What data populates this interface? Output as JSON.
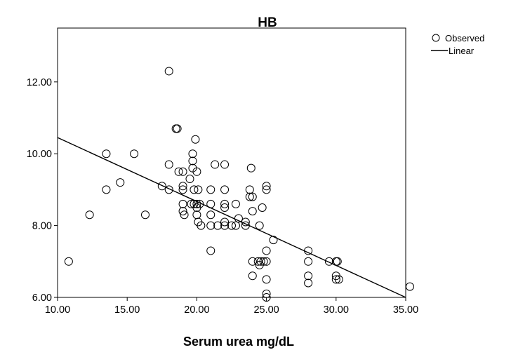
{
  "chart_data": {
    "type": "scatter",
    "title": "HB",
    "xlabel": "Serum urea mg/dL",
    "ylabel": "",
    "xlim": [
      10.0,
      35.0
    ],
    "ylim": [
      6.0,
      13.5
    ],
    "xticks": [
      "10.00",
      "15.00",
      "20.00",
      "25.00",
      "30.00",
      "35.00"
    ],
    "yticks": [
      "6.00",
      "8.00",
      "10.00",
      "12.00"
    ],
    "ytick_values": [
      6,
      8,
      10,
      12
    ],
    "xtick_values": [
      10,
      15,
      20,
      25,
      30,
      35
    ],
    "grid": false,
    "legend_position": "top-right, outside plot",
    "legend": [
      {
        "label": "Observed",
        "marker": "circle"
      },
      {
        "label": "Linear",
        "marker": "line"
      }
    ],
    "series": [
      {
        "name": "Observed",
        "style": "open-circle",
        "points": [
          [
            10.8,
            7.0
          ],
          [
            12.3,
            8.3
          ],
          [
            13.5,
            10.0
          ],
          [
            13.5,
            9.0
          ],
          [
            14.5,
            9.2
          ],
          [
            15.5,
            10.0
          ],
          [
            16.3,
            8.3
          ],
          [
            17.5,
            9.1
          ],
          [
            18.0,
            12.3
          ],
          [
            18.0,
            9.7
          ],
          [
            18.0,
            9.0
          ],
          [
            18.5,
            10.7
          ],
          [
            18.6,
            10.7
          ],
          [
            18.7,
            9.5
          ],
          [
            19.0,
            9.5
          ],
          [
            19.0,
            9.1
          ],
          [
            19.0,
            9.0
          ],
          [
            19.0,
            8.6
          ],
          [
            19.0,
            8.4
          ],
          [
            19.1,
            8.3
          ],
          [
            19.5,
            9.3
          ],
          [
            19.6,
            8.6
          ],
          [
            19.7,
            10.0
          ],
          [
            19.7,
            9.8
          ],
          [
            19.7,
            9.6
          ],
          [
            19.8,
            9.0
          ],
          [
            19.8,
            8.6
          ],
          [
            19.9,
            10.4
          ],
          [
            20.0,
            9.5
          ],
          [
            20.0,
            8.6
          ],
          [
            20.0,
            8.5
          ],
          [
            20.0,
            8.3
          ],
          [
            20.1,
            9.0
          ],
          [
            20.1,
            8.1
          ],
          [
            20.2,
            8.6
          ],
          [
            20.3,
            8.0
          ],
          [
            21.0,
            9.0
          ],
          [
            21.0,
            8.6
          ],
          [
            21.0,
            8.3
          ],
          [
            21.0,
            8.0
          ],
          [
            21.0,
            7.3
          ],
          [
            21.3,
            9.7
          ],
          [
            21.5,
            8.0
          ],
          [
            22.0,
            9.7
          ],
          [
            22.0,
            9.0
          ],
          [
            22.0,
            8.6
          ],
          [
            22.0,
            8.5
          ],
          [
            22.0,
            8.1
          ],
          [
            22.0,
            8.0
          ],
          [
            22.5,
            8.0
          ],
          [
            22.8,
            8.6
          ],
          [
            22.8,
            8.0
          ],
          [
            23.0,
            8.2
          ],
          [
            23.5,
            8.1
          ],
          [
            23.5,
            8.0
          ],
          [
            23.8,
            9.0
          ],
          [
            23.8,
            8.8
          ],
          [
            23.9,
            9.6
          ],
          [
            24.0,
            8.8
          ],
          [
            24.0,
            8.4
          ],
          [
            24.0,
            7.0
          ],
          [
            24.0,
            6.6
          ],
          [
            24.4,
            7.0
          ],
          [
            24.5,
            8.0
          ],
          [
            24.5,
            6.9
          ],
          [
            24.6,
            7.0
          ],
          [
            24.7,
            8.5
          ],
          [
            24.8,
            7.0
          ],
          [
            25.0,
            9.1
          ],
          [
            25.0,
            9.0
          ],
          [
            25.0,
            7.3
          ],
          [
            25.0,
            7.0
          ],
          [
            25.0,
            6.5
          ],
          [
            25.0,
            6.1
          ],
          [
            25.0,
            6.0
          ],
          [
            25.5,
            7.6
          ],
          [
            28.0,
            7.3
          ],
          [
            28.0,
            7.0
          ],
          [
            28.0,
            6.6
          ],
          [
            28.0,
            6.4
          ],
          [
            29.5,
            7.0
          ],
          [
            30.0,
            7.0
          ],
          [
            30.0,
            6.5
          ],
          [
            30.0,
            6.6
          ],
          [
            30.1,
            7.0
          ],
          [
            30.2,
            6.5
          ],
          [
            35.3,
            6.3
          ]
        ]
      },
      {
        "name": "Linear",
        "style": "line",
        "points": [
          [
            10.0,
            10.45
          ],
          [
            35.0,
            6.0
          ]
        ]
      }
    ]
  }
}
